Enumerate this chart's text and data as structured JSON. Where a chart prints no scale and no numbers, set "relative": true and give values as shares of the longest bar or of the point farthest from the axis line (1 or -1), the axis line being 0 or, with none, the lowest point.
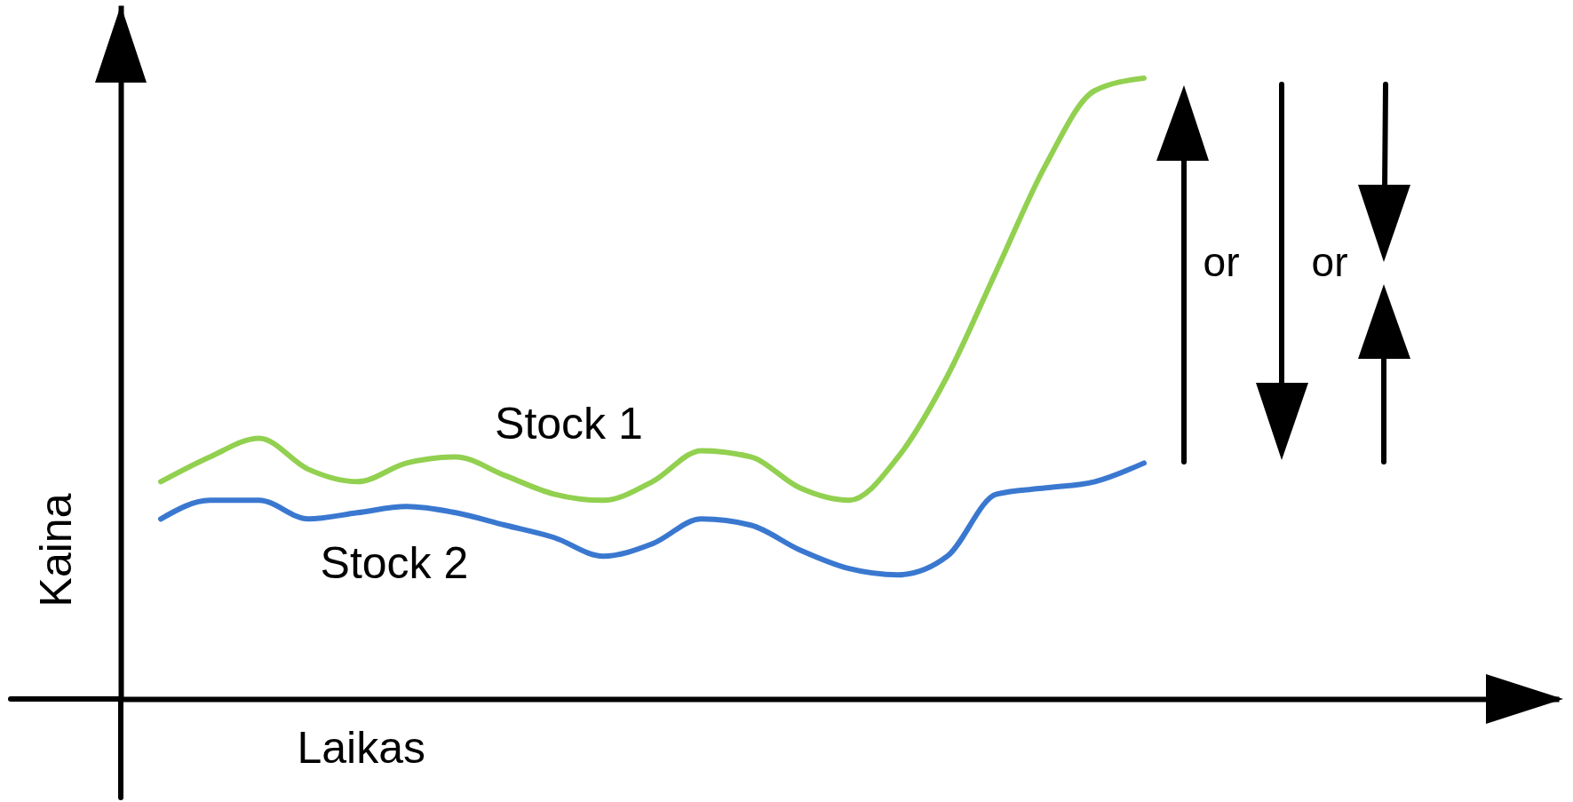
{
  "chart_data": {
    "type": "line",
    "relative": true,
    "xlabel": "Laikas",
    "ylabel": "Kaina",
    "categories": [
      null,
      null,
      null,
      null,
      null,
      null,
      null,
      null,
      null,
      null,
      null,
      null,
      null,
      null,
      null,
      null,
      null,
      null,
      null,
      null,
      null
    ],
    "series": [
      {
        "name": "Stock 1",
        "color": "#92d050",
        "values": [
          0.35,
          0.39,
          0.42,
          0.37,
          0.35,
          0.38,
          0.39,
          0.36,
          0.33,
          0.32,
          0.35,
          0.4,
          0.39,
          0.34,
          0.32,
          0.39,
          0.52,
          0.69,
          0.86,
          0.98,
          1
        ]
      },
      {
        "name": "Stock 2",
        "color": "#3a78d0",
        "values": [
          0.29,
          0.32,
          0.32,
          0.29,
          0.3,
          0.31,
          0.3,
          0.28,
          0.26,
          0.23,
          0.25,
          0.29,
          0.28,
          0.24,
          0.21,
          0.2,
          0.23,
          0.33,
          0.34,
          0.35,
          0.38
        ]
      }
    ],
    "annotations": [
      "or",
      "or"
    ],
    "marker": "none",
    "line_style": "solid",
    "grid": false
  }
}
